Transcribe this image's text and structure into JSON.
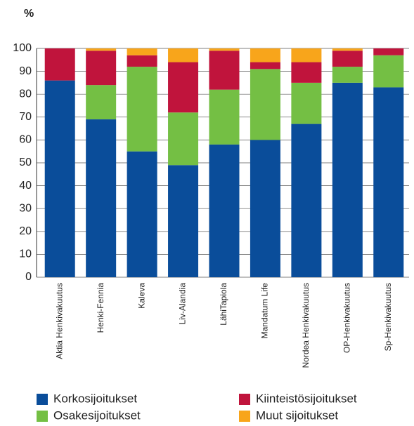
{
  "chart_data": {
    "type": "stacked_bar",
    "y_label": "%",
    "categories": [
      "Aktia Henkivakuutus",
      "Henki-Fennia",
      "Kaleva",
      "Liv-Alandia",
      "LähiTapiola",
      "Mandatum Life",
      "Nordea Henkivakuutus",
      "OP-Henkivakuutus",
      "Sp-Henkivakuutus"
    ],
    "series": [
      {
        "name": "Korkosijoitukset",
        "color": "#0a4d9a",
        "values": [
          86,
          69,
          55,
          49,
          58,
          60,
          67,
          85,
          83
        ]
      },
      {
        "name": "Osakesijoitukset",
        "color": "#74bf44",
        "values": [
          0,
          15,
          37,
          23,
          24,
          31,
          18,
          7,
          14
        ]
      },
      {
        "name": "Kiinteistösijoitukset",
        "color": "#c0143c",
        "values": [
          14,
          15,
          5,
          22,
          17,
          3,
          9,
          7,
          3
        ]
      },
      {
        "name": "Muut sijoitukset",
        "color": "#f8a51b",
        "values": [
          0,
          1,
          3,
          6,
          1,
          6,
          6,
          1,
          0
        ]
      }
    ],
    "ylim": [
      0,
      100
    ],
    "yticks": [
      0,
      10,
      20,
      30,
      40,
      50,
      60,
      70,
      80,
      90,
      100
    ],
    "grid": true
  }
}
